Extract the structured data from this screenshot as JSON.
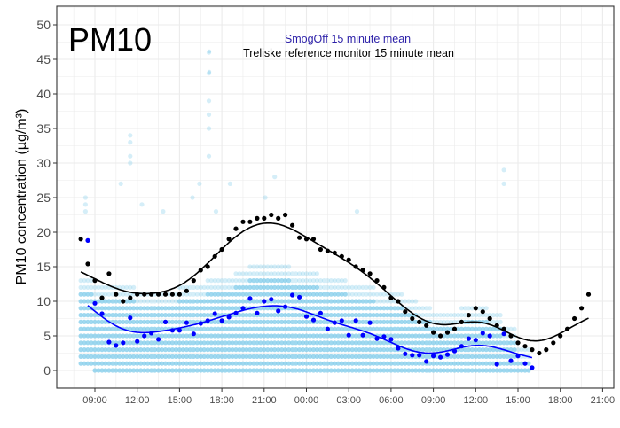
{
  "chart_data": {
    "type": "scatter",
    "title": "PM10",
    "xlabel": "",
    "ylabel": "PM10 concentration (µg/m³)",
    "ylim": [
      0,
      50
    ],
    "yticks": [
      "0",
      "5",
      "10",
      "15",
      "20",
      "25",
      "30",
      "35",
      "40",
      "45",
      "50"
    ],
    "xticks": [
      "09:00",
      "12:00",
      "15:00",
      "18:00",
      "21:00",
      "00:00",
      "03:00",
      "06:00",
      "09:00",
      "12:00",
      "15:00",
      "18:00",
      "21:00"
    ],
    "grid": true,
    "legend": {
      "placement": "top-center",
      "entries": [
        {
          "label": "SmogOff 15 minute mean",
          "color": "#2b1fa8"
        },
        {
          "label": "Treliske reference monitor 15 minute mean",
          "color": "#000000"
        }
      ]
    },
    "colors": {
      "raw": "#87ceeb",
      "smogoff": "#0000ff",
      "reference": "#000000"
    },
    "raw_sensor_readings": {
      "note_visible": "",
      "start": "08:00",
      "interval_minutes": 60,
      "min": [
        1,
        0,
        0,
        0,
        0,
        0,
        0,
        0,
        0,
        0,
        0,
        0,
        0,
        0,
        0,
        0,
        0,
        0,
        0,
        0,
        0,
        0,
        0,
        0,
        0,
        0,
        0,
        0,
        0,
        0,
        0,
        0
      ],
      "max": [
        13,
        12,
        12,
        12,
        11,
        11,
        11,
        12,
        12,
        13,
        13,
        14,
        15,
        15,
        15,
        14,
        14,
        13,
        13,
        12,
        12,
        11,
        11,
        10,
        9,
        8,
        8,
        9,
        9,
        8,
        6,
        3
      ],
      "outliers": [
        [
          "08:20",
          25
        ],
        [
          "08:20",
          24
        ],
        [
          "08:20",
          23
        ],
        [
          "10:50",
          27
        ],
        [
          "11:30",
          34
        ],
        [
          "11:30",
          33
        ],
        [
          "11:30",
          31
        ],
        [
          "11:30",
          30
        ],
        [
          "12:20",
          24
        ],
        [
          "13:50",
          23
        ],
        [
          "15:55",
          25
        ],
        [
          "16:25",
          27
        ],
        [
          "17:05",
          46
        ],
        [
          "17:05",
          43
        ],
        [
          "17:05",
          39
        ],
        [
          "17:05",
          37
        ],
        [
          "17:05",
          35
        ],
        [
          "17:05",
          31
        ],
        [
          "17:35",
          23
        ],
        [
          "18:35",
          27
        ],
        [
          "21:05",
          25
        ],
        [
          "21:45",
          28
        ],
        [
          "03:35",
          23
        ],
        [
          "14:00",
          29
        ],
        [
          "14:00",
          27
        ]
      ]
    },
    "series": [
      {
        "name": "Treliske reference monitor 15 minute mean",
        "start": "08:00",
        "interval_minutes": 30,
        "values": [
          19,
          15.4,
          13,
          10.5,
          14,
          11,
          10,
          10.5,
          11,
          11,
          11,
          11,
          11,
          11,
          11,
          11.5,
          13,
          14.5,
          15,
          16.5,
          17.5,
          19,
          20.5,
          21.5,
          21.5,
          22,
          22,
          22.5,
          22,
          22.5,
          21,
          19.2,
          19,
          19,
          17.5,
          17.3,
          17,
          16.5,
          16,
          15,
          14.5,
          14,
          13,
          12,
          10.5,
          10,
          8.5,
          7.5,
          7,
          6.5,
          5.5,
          5,
          5.5,
          6,
          7,
          8,
          9,
          8.5,
          7.5,
          6.5,
          6,
          5,
          4,
          3.5,
          3,
          2.5,
          3,
          4,
          5,
          6,
          7.5,
          9,
          11
        ]
      },
      {
        "name": "SmogOff 15 minute mean",
        "start": "08:30",
        "interval_minutes": 30,
        "values": [
          18.8,
          9.7,
          8.2,
          4.1,
          3.6,
          4,
          7.6,
          4.2,
          5,
          5.4,
          4.5,
          7,
          5.8,
          5.8,
          6.9,
          5.3,
          6.8,
          7.2,
          8.2,
          7.2,
          7.7,
          8.3,
          9,
          10.4,
          8.3,
          10,
          10.3,
          8.6,
          9.2,
          10.9,
          10.6,
          7.8,
          7.3,
          8.3,
          6,
          6.9,
          7.2,
          5.1,
          7.2,
          5.1,
          6.9,
          4.6,
          4.9,
          4.5,
          3.2,
          2.4,
          2.2,
          2.2,
          1.3,
          2.1,
          1.9,
          2.3,
          2.8,
          3.5,
          4.6,
          4.4,
          5.4,
          5,
          0.9,
          5.3,
          1.4,
          2.1,
          1,
          0.4
        ]
      }
    ]
  }
}
